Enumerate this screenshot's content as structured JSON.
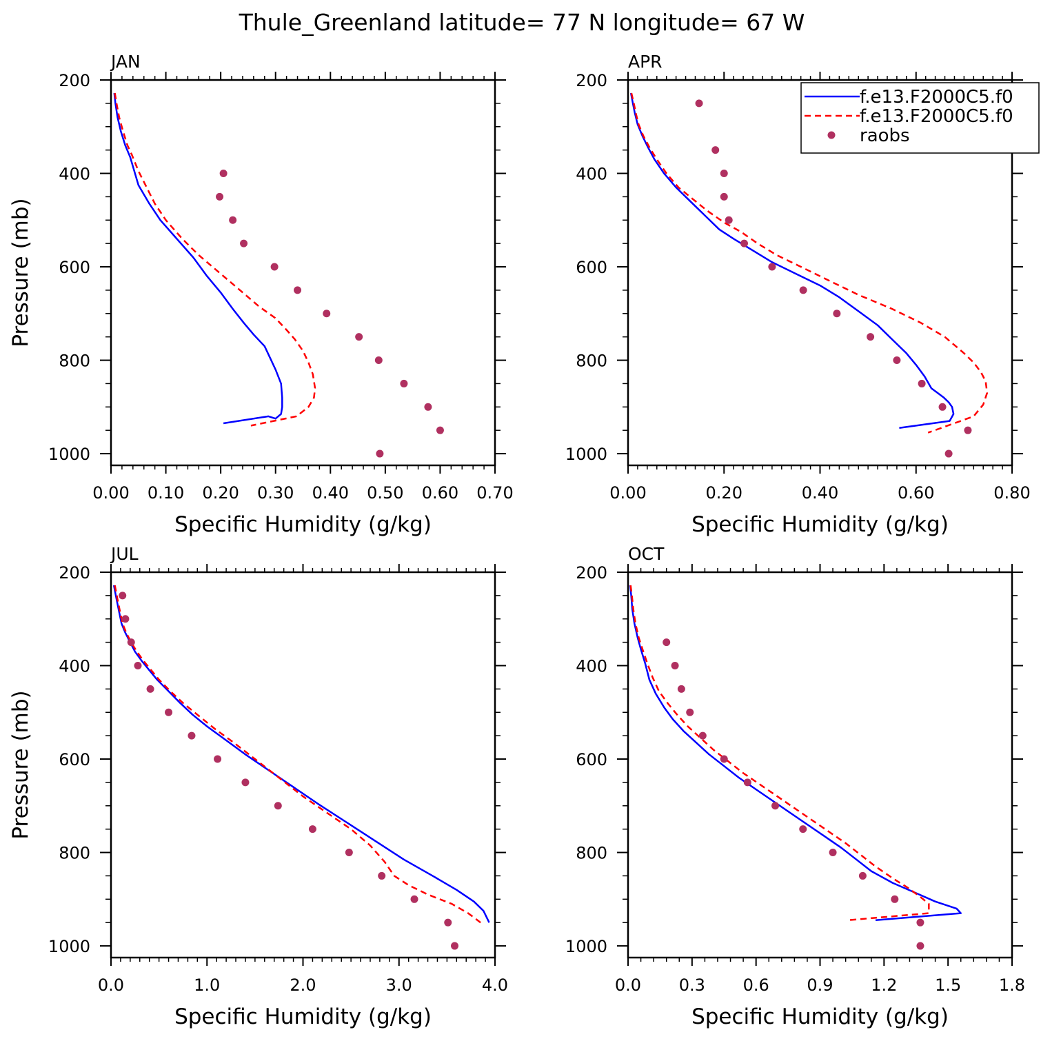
{
  "title": "Thule_Greenland  latitude= 77 N longitude= 67 W",
  "colors": {
    "model1": "#0000ff",
    "model2": "#ff0000",
    "obs": "#b03060"
  },
  "legend": {
    "placement": "top-right of APR panel",
    "entries": [
      "f.e13.F2000C5.f0",
      "f.e13.F2000C5.f0",
      "raobs"
    ]
  },
  "chart_data": [
    {
      "type": "line",
      "label": "JAN",
      "xlabel": "Specific Humidity (g/kg)",
      "ylabel": "Pressure (mb)",
      "xlim": [
        0,
        0.7
      ],
      "ylim": [
        1000,
        200
      ],
      "xticks": [
        0,
        0.1,
        0.2,
        0.3,
        0.4,
        0.5,
        0.6,
        0.7
      ],
      "xtick_labels": [
        "0.00",
        "0.10",
        "0.20",
        "0.30",
        "0.40",
        "0.50",
        "0.60",
        "0.70"
      ],
      "yticks": [
        200,
        400,
        600,
        800,
        1000
      ],
      "ytick_labels": [
        "200",
        "400",
        "600",
        "800",
        "1000"
      ],
      "series": [
        {
          "kind": "solid",
          "color": "#0000ff",
          "x": [
            0.006,
            0.008,
            0.012,
            0.018,
            0.026,
            0.035,
            0.05,
            0.07,
            0.09,
            0.12,
            0.15,
            0.175,
            0.2,
            0.222,
            0.242,
            0.26,
            0.28,
            0.29,
            0.3,
            0.31,
            0.312,
            0.312,
            0.31,
            0.3,
            0.287,
            0.205
          ],
          "y": [
            228,
            250,
            280,
            310,
            340,
            365,
            425,
            465,
            500,
            540,
            580,
            620,
            655,
            690,
            720,
            745,
            770,
            795,
            820,
            850,
            880,
            900,
            915,
            925,
            920,
            935
          ]
        },
        {
          "kind": "dashed",
          "color": "#ff0000",
          "x": [
            0.007,
            0.01,
            0.015,
            0.022,
            0.03,
            0.038,
            0.05,
            0.065,
            0.08,
            0.1,
            0.13,
            0.16,
            0.19,
            0.22,
            0.245,
            0.27,
            0.3,
            0.32,
            0.335,
            0.35,
            0.36,
            0.368,
            0.372,
            0.37,
            0.36,
            0.338,
            0.255
          ],
          "y": [
            228,
            250,
            280,
            310,
            340,
            360,
            395,
            430,
            465,
            500,
            540,
            575,
            605,
            635,
            660,
            685,
            710,
            735,
            755,
            780,
            805,
            830,
            860,
            880,
            900,
            920,
            940
          ]
        },
        {
          "kind": "dots",
          "color": "#b03060",
          "x": [
            0.205,
            0.198,
            0.222,
            0.242,
            0.298,
            0.34,
            0.393,
            0.452,
            0.488,
            0.534,
            0.578,
            0.6,
            0.49
          ],
          "y": [
            400,
            450,
            500,
            550,
            600,
            650,
            700,
            750,
            800,
            850,
            900,
            950,
            1000
          ]
        }
      ]
    },
    {
      "type": "line",
      "label": "APR",
      "xlabel": "Specific Humidity (g/kg)",
      "ylabel": "",
      "xlim": [
        0,
        0.8
      ],
      "ylim": [
        1000,
        200
      ],
      "xticks": [
        0,
        0.2,
        0.4,
        0.6,
        0.8
      ],
      "xtick_labels": [
        "0.00",
        "0.20",
        "0.40",
        "0.60",
        "0.80"
      ],
      "yticks": [
        200,
        400,
        600,
        800,
        1000
      ],
      "ytick_labels": [
        "200",
        "400",
        "600",
        "800",
        "1000"
      ],
      "series": [
        {
          "kind": "solid",
          "color": "#0000ff",
          "x": [
            0.006,
            0.01,
            0.014,
            0.02,
            0.03,
            0.042,
            0.055,
            0.075,
            0.1,
            0.13,
            0.16,
            0.19,
            0.22,
            0.26,
            0.3,
            0.35,
            0.4,
            0.44,
            0.48,
            0.52,
            0.55,
            0.58,
            0.6,
            0.618,
            0.632,
            0.645,
            0.658,
            0.668,
            0.675,
            0.678,
            0.67,
            0.565
          ],
          "y": [
            228,
            250,
            270,
            295,
            320,
            345,
            370,
            400,
            430,
            460,
            490,
            520,
            540,
            565,
            590,
            615,
            640,
            665,
            695,
            725,
            755,
            785,
            810,
            835,
            860,
            870,
            880,
            890,
            900,
            915,
            930,
            945
          ]
        },
        {
          "kind": "dashed",
          "color": "#ff0000",
          "x": [
            0.007,
            0.012,
            0.016,
            0.022,
            0.032,
            0.045,
            0.06,
            0.08,
            0.105,
            0.135,
            0.165,
            0.2,
            0.235,
            0.27,
            0.31,
            0.36,
            0.42,
            0.48,
            0.55,
            0.61,
            0.66,
            0.7,
            0.72,
            0.735,
            0.745,
            0.748,
            0.74,
            0.72,
            0.625
          ],
          "y": [
            228,
            250,
            270,
            295,
            320,
            345,
            370,
            400,
            430,
            455,
            480,
            505,
            525,
            550,
            575,
            600,
            630,
            660,
            690,
            720,
            750,
            785,
            805,
            825,
            845,
            870,
            895,
            920,
            955
          ]
        },
        {
          "kind": "dots",
          "color": "#b03060",
          "x": [
            0.148,
            0.182,
            0.2,
            0.2,
            0.21,
            0.242,
            0.3,
            0.365,
            0.435,
            0.505,
            0.56,
            0.612,
            0.655,
            0.708,
            0.668
          ],
          "y": [
            250,
            350,
            400,
            450,
            500,
            550,
            600,
            650,
            700,
            750,
            800,
            850,
            900,
            950,
            1000
          ]
        }
      ]
    },
    {
      "type": "line",
      "label": "JUL",
      "xlabel": "Specific Humidity (g/kg)",
      "ylabel": "Pressure (mb)",
      "xlim": [
        0,
        4.0
      ],
      "ylim": [
        1000,
        200
      ],
      "xticks": [
        0,
        1,
        2,
        3,
        4
      ],
      "xtick_labels": [
        "0.0",
        "1.0",
        "2.0",
        "3.0",
        "4.0"
      ],
      "yticks": [
        200,
        400,
        600,
        800,
        1000
      ],
      "ytick_labels": [
        "200",
        "400",
        "600",
        "800",
        "1000"
      ],
      "series": [
        {
          "kind": "solid",
          "color": "#0000ff",
          "x": [
            0.03,
            0.05,
            0.08,
            0.11,
            0.15,
            0.2,
            0.25,
            0.32,
            0.4,
            0.48,
            0.6,
            0.72,
            0.85,
            1.0,
            1.2,
            1.4,
            1.65,
            1.9,
            2.15,
            2.45,
            2.75,
            3.05,
            3.35,
            3.6,
            3.78,
            3.88,
            3.94
          ],
          "y": [
            228,
            250,
            280,
            310,
            330,
            350,
            370,
            390,
            410,
            430,
            455,
            480,
            505,
            530,
            560,
            590,
            625,
            660,
            695,
            735,
            775,
            815,
            850,
            880,
            905,
            925,
            950
          ]
        },
        {
          "kind": "dashed",
          "color": "#ff0000",
          "x": [
            0.04,
            0.06,
            0.09,
            0.12,
            0.16,
            0.21,
            0.27,
            0.34,
            0.42,
            0.5,
            0.62,
            0.75,
            0.9,
            1.08,
            1.28,
            1.5,
            1.75,
            2.0,
            2.25,
            2.5,
            2.7,
            2.85,
            2.95,
            3.1,
            3.3,
            3.55,
            3.72,
            3.85
          ],
          "y": [
            228,
            250,
            280,
            310,
            330,
            350,
            370,
            390,
            410,
            430,
            455,
            480,
            505,
            535,
            565,
            600,
            640,
            680,
            715,
            750,
            785,
            820,
            850,
            870,
            890,
            910,
            930,
            950
          ]
        },
        {
          "kind": "dots",
          "color": "#b03060",
          "x": [
            0.12,
            0.15,
            0.21,
            0.28,
            0.41,
            0.6,
            0.84,
            1.11,
            1.4,
            1.74,
            2.1,
            2.48,
            2.82,
            3.16,
            3.51,
            3.58
          ],
          "y": [
            250,
            300,
            350,
            400,
            450,
            500,
            550,
            600,
            650,
            700,
            750,
            800,
            850,
            900,
            950,
            1000
          ]
        }
      ]
    },
    {
      "type": "line",
      "label": "OCT",
      "xlabel": "Specific Humidity (g/kg)",
      "ylabel": "",
      "xlim": [
        0,
        1.8
      ],
      "ylim": [
        1000,
        200
      ],
      "xticks": [
        0,
        0.3,
        0.6,
        0.9,
        1.2,
        1.5,
        1.8
      ],
      "xtick_labels": [
        "0.0",
        "0.3",
        "0.6",
        "0.9",
        "1.2",
        "1.5",
        "1.8"
      ],
      "yticks": [
        200,
        400,
        600,
        800,
        1000
      ],
      "ytick_labels": [
        "200",
        "400",
        "600",
        "800",
        "1000"
      ],
      "series": [
        {
          "kind": "solid",
          "color": "#0000ff",
          "x": [
            0.01,
            0.015,
            0.02,
            0.03,
            0.045,
            0.06,
            0.08,
            0.1,
            0.13,
            0.17,
            0.21,
            0.26,
            0.32,
            0.38,
            0.45,
            0.52,
            0.6,
            0.68,
            0.76,
            0.84,
            0.92,
            1.0,
            1.07,
            1.14,
            1.24,
            1.34,
            1.44,
            1.54,
            1.56,
            1.16
          ],
          "y": [
            228,
            250,
            280,
            310,
            340,
            365,
            395,
            430,
            460,
            490,
            515,
            540,
            565,
            590,
            615,
            640,
            665,
            690,
            715,
            740,
            765,
            790,
            815,
            840,
            865,
            885,
            905,
            920,
            930,
            945
          ]
        },
        {
          "kind": "dashed",
          "color": "#ff0000",
          "x": [
            0.012,
            0.018,
            0.025,
            0.035,
            0.05,
            0.068,
            0.09,
            0.115,
            0.145,
            0.185,
            0.23,
            0.28,
            0.34,
            0.4,
            0.47,
            0.54,
            0.62,
            0.7,
            0.78,
            0.86,
            0.94,
            1.02,
            1.09,
            1.16,
            1.24,
            1.31,
            1.37,
            1.41,
            1.41,
            1.03
          ],
          "y": [
            228,
            250,
            280,
            310,
            340,
            365,
            395,
            425,
            455,
            480,
            505,
            530,
            555,
            580,
            605,
            630,
            655,
            680,
            705,
            730,
            755,
            780,
            805,
            830,
            855,
            875,
            895,
            910,
            930,
            945
          ]
        },
        {
          "kind": "dots",
          "color": "#b03060",
          "x": [
            0.18,
            0.22,
            0.25,
            0.29,
            0.35,
            0.45,
            0.56,
            0.69,
            0.82,
            0.96,
            1.1,
            1.25,
            1.37,
            1.37
          ],
          "y": [
            350,
            400,
            450,
            500,
            550,
            600,
            650,
            700,
            750,
            800,
            850,
            900,
            950,
            1000
          ]
        }
      ]
    }
  ]
}
